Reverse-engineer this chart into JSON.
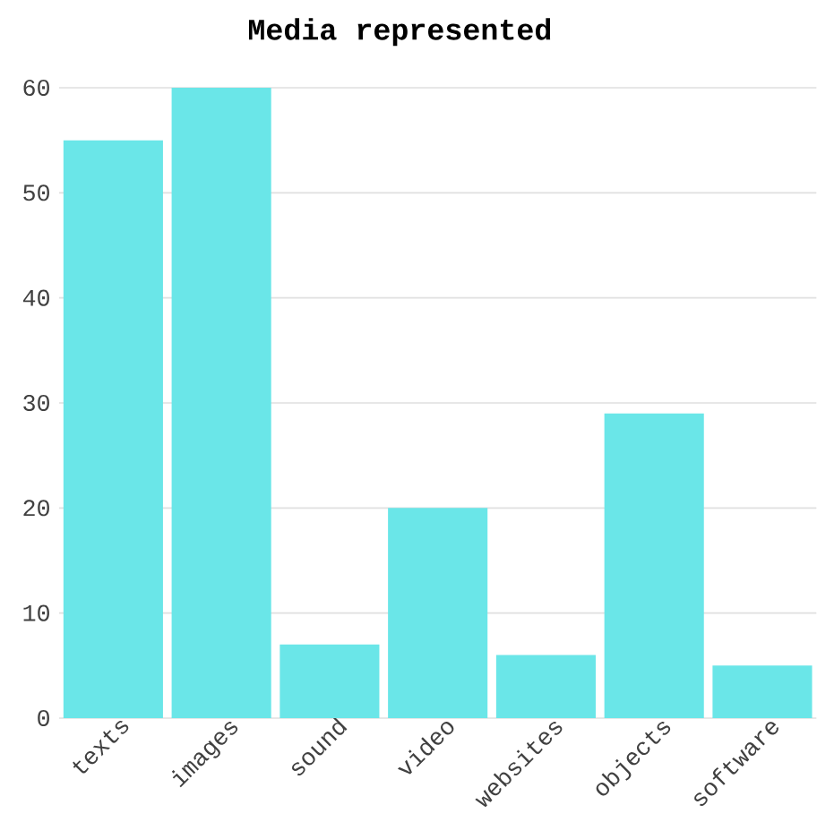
{
  "chart_data": {
    "type": "bar",
    "title": "Media represented",
    "categories": [
      "texts",
      "images",
      "sound",
      "video",
      "websites",
      "objects",
      "software"
    ],
    "values": [
      55,
      60,
      7,
      20,
      6,
      29,
      5
    ],
    "color": "#6ae6e8",
    "ylim": [
      0,
      60
    ],
    "yticks": [
      0,
      10,
      20,
      30,
      40,
      50,
      60
    ],
    "grid": "y"
  }
}
